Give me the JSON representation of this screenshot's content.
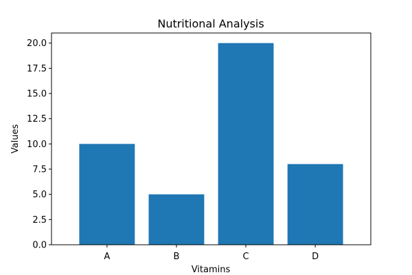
{
  "chart_data": {
    "type": "bar",
    "title": "Nutritional Analysis",
    "xlabel": "Vitamins",
    "ylabel": "Values",
    "categories": [
      "A",
      "B",
      "C",
      "D"
    ],
    "values": [
      10,
      5,
      20,
      8
    ],
    "ylim": [
      0,
      21
    ],
    "yticks": [
      "0.0",
      "2.5",
      "5.0",
      "7.5",
      "10.0",
      "12.5",
      "15.0",
      "17.5",
      "20.0"
    ],
    "grid": false,
    "bar_color": "#1f77b4"
  }
}
